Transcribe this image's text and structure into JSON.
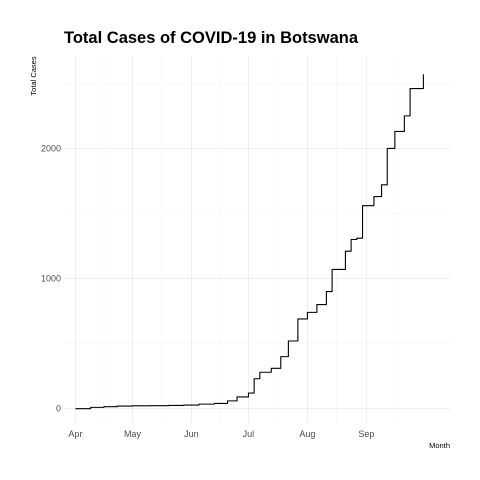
{
  "chart_data": {
    "type": "line",
    "title": "Total Cases of COVID-19 in Botswana",
    "xlabel": "Month",
    "ylabel": "Total Cases",
    "x_tick_labels": [
      "Apr",
      "May",
      "Jun",
      "Jul",
      "Aug",
      "Sep"
    ],
    "x_ticks": [
      "2020-04-01",
      "2020-05-01",
      "2020-06-01",
      "2020-07-01",
      "2020-08-01",
      "2020-09-01"
    ],
    "y_ticks": [
      0,
      1000,
      2000
    ],
    "xlim": [
      "2020-03-26",
      "2020-10-15"
    ],
    "ylim": [
      -110,
      2710
    ],
    "grid": true,
    "legend": "none",
    "step": true,
    "series": [
      {
        "x": [
          "2020-04-01",
          "2020-04-09",
          "2020-04-16",
          "2020-04-23",
          "2020-05-01",
          "2020-05-10",
          "2020-05-20",
          "2020-05-28",
          "2020-06-05",
          "2020-06-13",
          "2020-06-20",
          "2020-06-25",
          "2020-07-01",
          "2020-07-04",
          "2020-07-07",
          "2020-07-13",
          "2020-07-18",
          "2020-07-22",
          "2020-07-27",
          "2020-08-01",
          "2020-08-06",
          "2020-08-11",
          "2020-08-14",
          "2020-08-21",
          "2020-08-24",
          "2020-08-27",
          "2020-08-30",
          "2020-09-05",
          "2020-09-09",
          "2020-09-12",
          "2020-09-16",
          "2020-09-21",
          "2020-09-24",
          "2020-10-01"
        ],
        "y": [
          0,
          10,
          15,
          20,
          22,
          23,
          25,
          28,
          35,
          40,
          60,
          90,
          120,
          230,
          280,
          310,
          400,
          520,
          690,
          740,
          800,
          900,
          1070,
          1210,
          1300,
          1310,
          1560,
          1630,
          1720,
          2000,
          2130,
          2250,
          2460,
          2570
        ]
      }
    ]
  }
}
